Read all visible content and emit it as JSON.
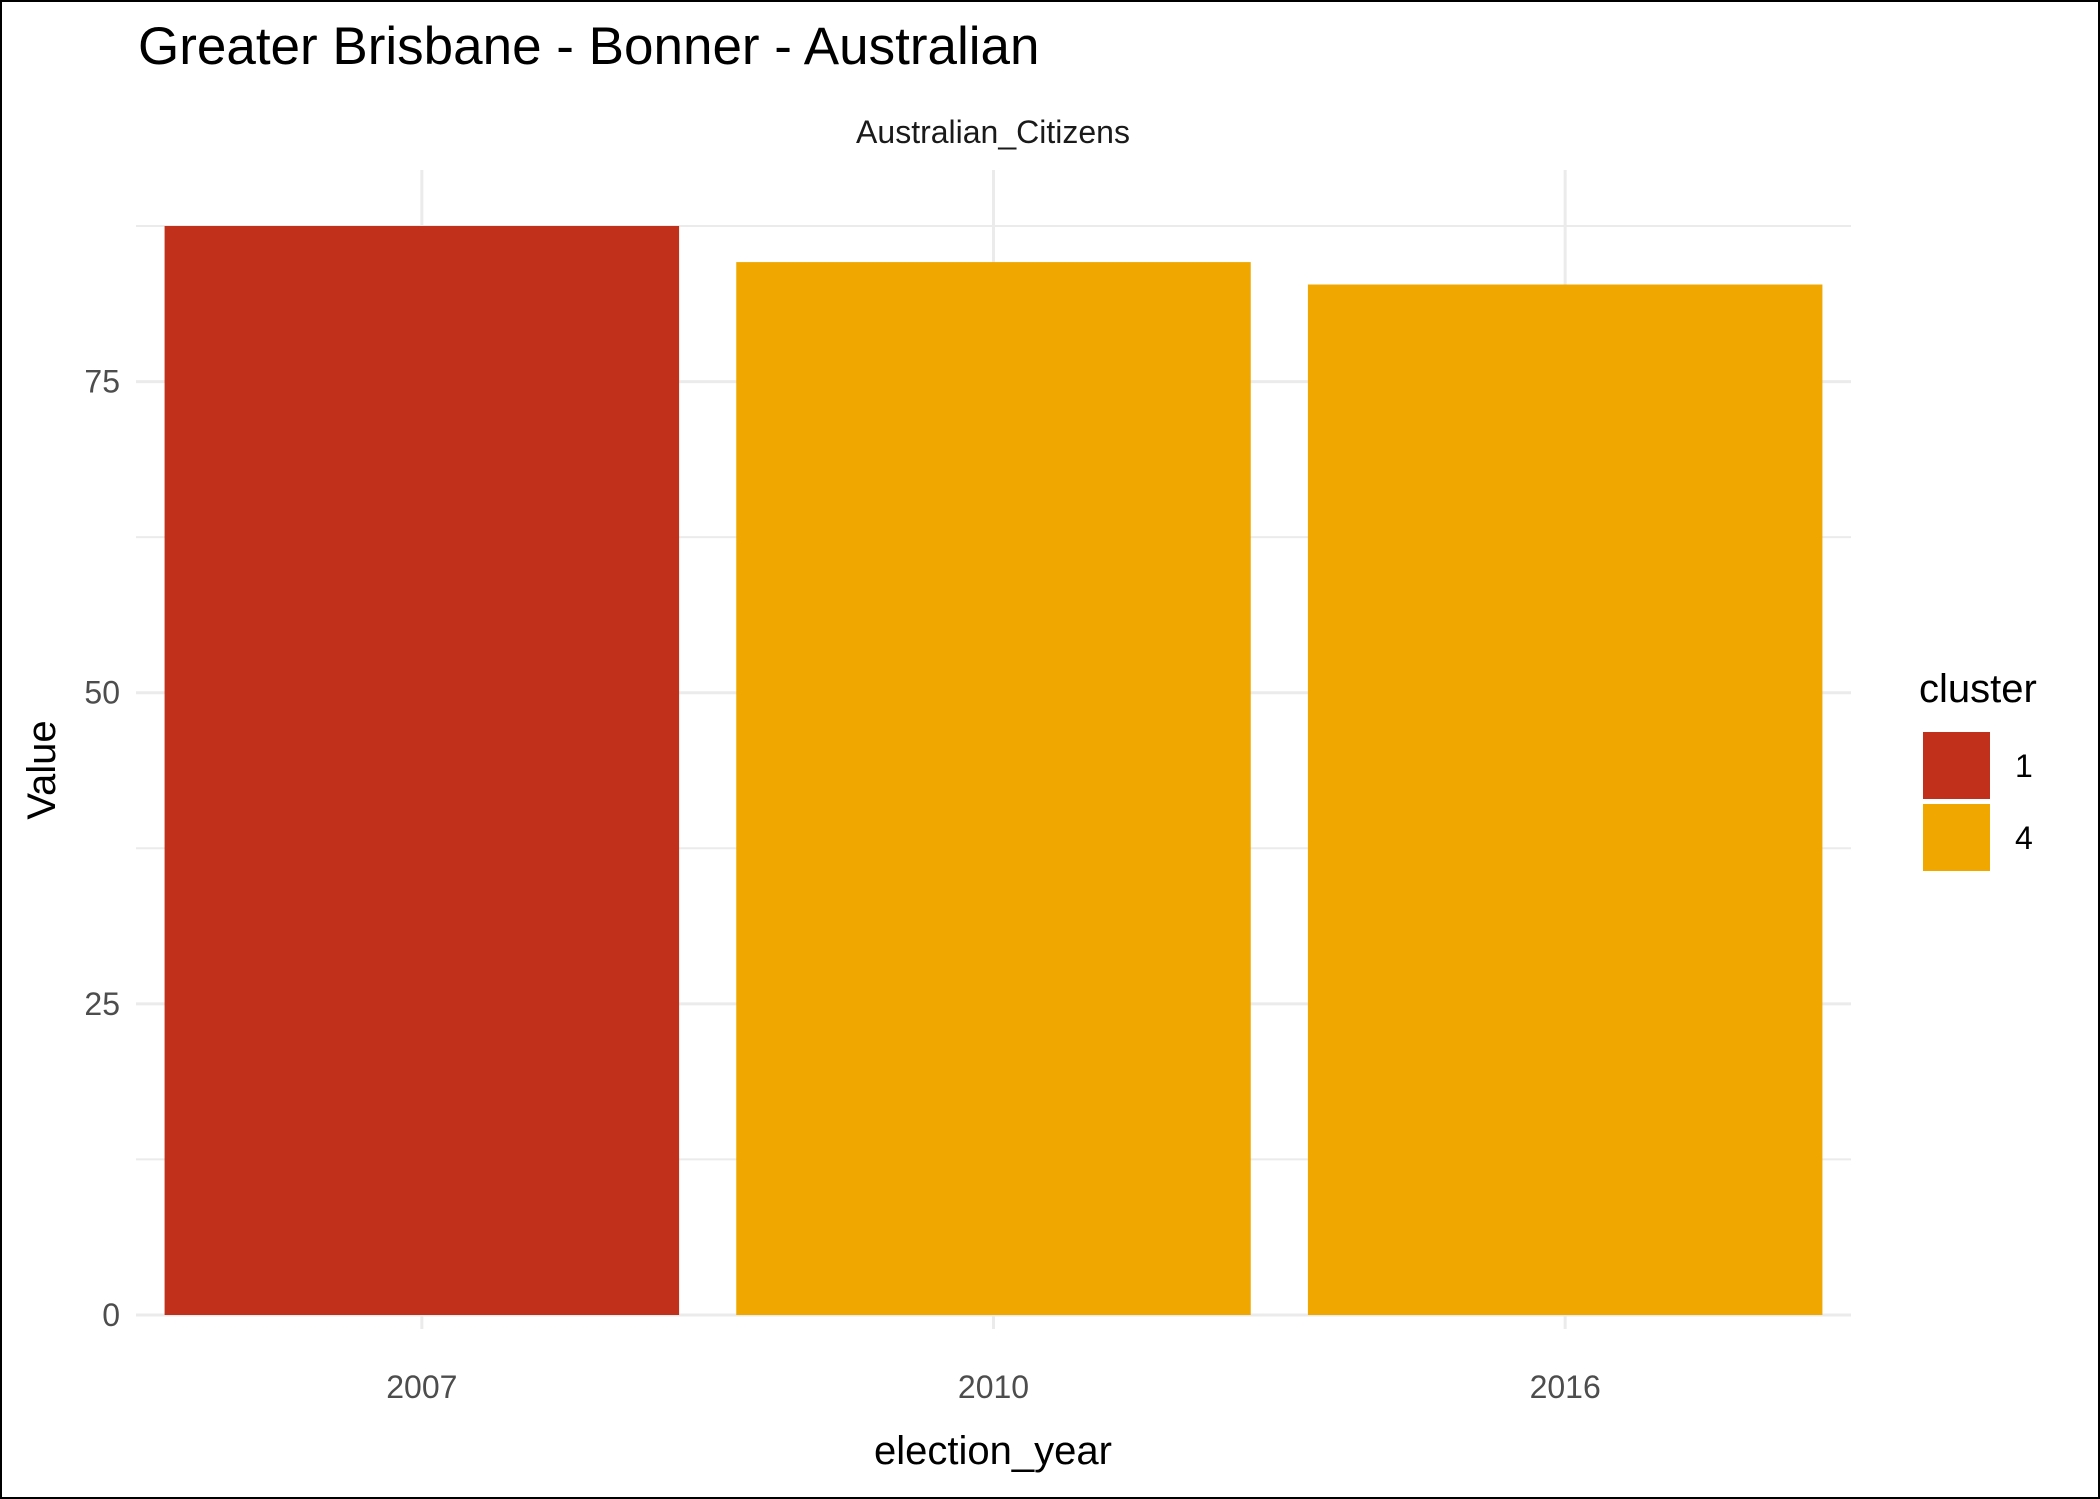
{
  "chart_data": {
    "type": "bar",
    "title": "Greater Brisbane - Bonner - Australian",
    "facet_label": "Australian_Citizens",
    "xlabel": "election_year",
    "ylabel": "Value",
    "categories": [
      "2007",
      "2010",
      "2016"
    ],
    "values": [
      87.5,
      84.6,
      82.8
    ],
    "bar_clusters": [
      "1",
      "4",
      "4"
    ],
    "ylim": [
      0,
      92
    ],
    "yticks": [
      0,
      25,
      50,
      75
    ],
    "grid": true,
    "legend": {
      "title": "cluster",
      "placement": "right",
      "items": [
        {
          "label": "1",
          "color": "#C0301A"
        },
        {
          "label": "4",
          "color": "#F0A800"
        }
      ]
    }
  }
}
